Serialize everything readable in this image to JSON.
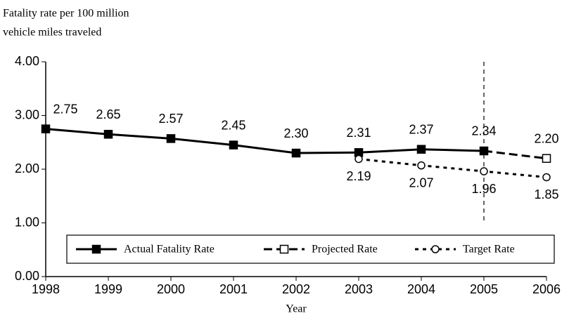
{
  "chart_data": {
    "type": "line",
    "y_label": [
      "Fatality rate per 100 million",
      "vehicle miles traveled"
    ],
    "x_label": "Year",
    "x": [
      1998,
      1999,
      2000,
      2001,
      2002,
      2003,
      2004,
      2005,
      2006
    ],
    "xlim": [
      1998,
      2006
    ],
    "xticks": [
      1998,
      1999,
      2000,
      2001,
      2002,
      2003,
      2004,
      2005,
      2006
    ],
    "ylim": [
      0,
      4
    ],
    "yticks": [
      {
        "value": 0,
        "label": "0.00"
      },
      {
        "value": 1,
        "label": "1.00"
      },
      {
        "value": 2,
        "label": "2.00"
      },
      {
        "value": 3,
        "label": "3.00"
      },
      {
        "value": 4,
        "label": "4.00"
      }
    ],
    "grid": false,
    "legend": "bottom",
    "vline": {
      "x": 2005,
      "y": [
        1,
        4
      ]
    },
    "series": [
      {
        "name": "Actual Fatality Rate",
        "color": "#000000",
        "style": "solid",
        "marker": "filled-square",
        "label_side": "above",
        "values": [
          2.75,
          2.65,
          2.57,
          2.45,
          2.3,
          2.31,
          2.37,
          2.34,
          null
        ],
        "value_labels": [
          "2.75",
          "2.65",
          "2.57",
          "2.45",
          "2.30",
          "2.31",
          "2.37",
          "2.34",
          null
        ]
      },
      {
        "name": "Projected Rate",
        "color": "#000000",
        "style": "dashed",
        "marker": "open-square",
        "label_side": "above",
        "values": [
          null,
          null,
          null,
          null,
          null,
          null,
          null,
          null,
          2.2
        ],
        "value_labels": [
          null,
          null,
          null,
          null,
          null,
          null,
          null,
          null,
          "2.20"
        ]
      },
      {
        "name": "Target Rate",
        "color": "#000000",
        "style": "dotted",
        "marker": "open-circle",
        "label_side": "below",
        "values": [
          null,
          null,
          null,
          null,
          null,
          2.19,
          2.07,
          1.96,
          1.85
        ],
        "value_labels": [
          null,
          null,
          null,
          null,
          null,
          "2.19",
          "2.07",
          "1.96",
          "1.85"
        ]
      }
    ]
  }
}
